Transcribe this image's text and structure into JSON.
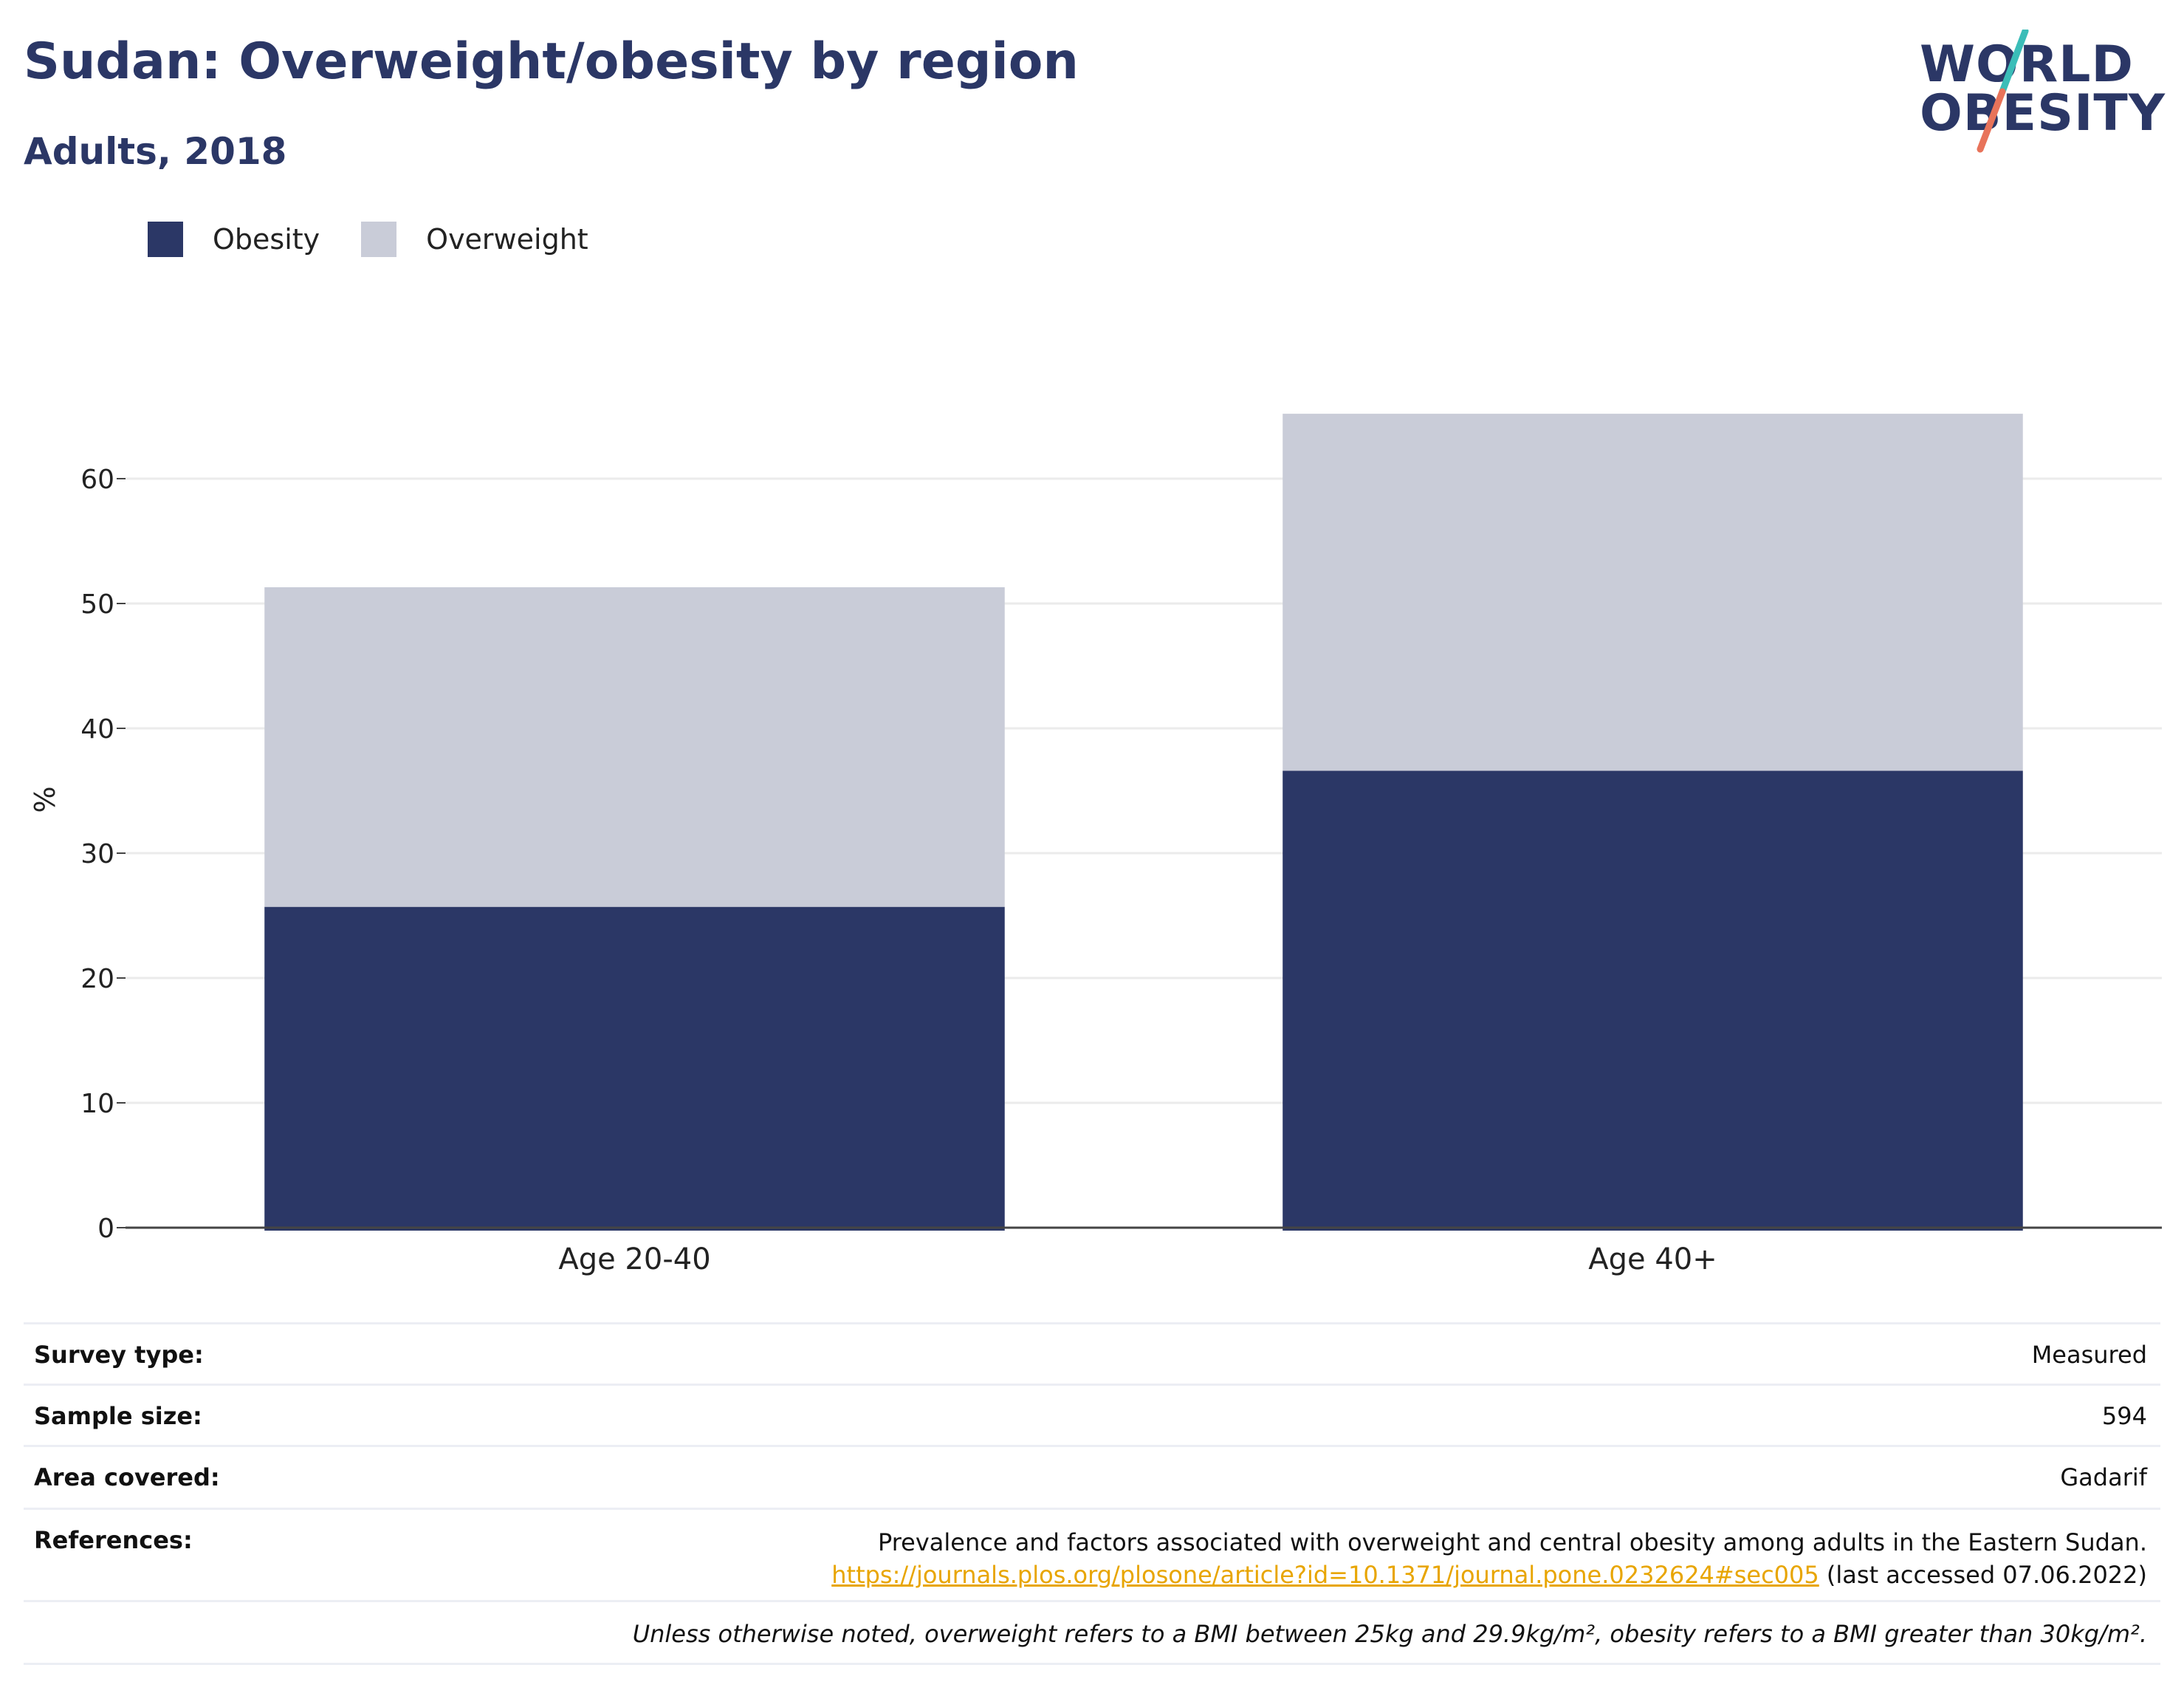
{
  "header": {
    "title": "Sudan: Overweight/obesity by region",
    "subtitle": "Adults, 2018"
  },
  "logo": {
    "line1": "WORLD",
    "line2": "OBESITY"
  },
  "colors": {
    "obesity": "#2b3766",
    "overweight": "#c9ccd8",
    "title": "#2b3766",
    "link": "#e8a500"
  },
  "chart_data": {
    "type": "bar",
    "stacked": true,
    "categories": [
      "Age 20-40",
      "Age 40+"
    ],
    "series": [
      {
        "name": "Obesity",
        "values": [
          25.7,
          36.6
        ]
      },
      {
        "name": "Overweight",
        "values": [
          25.6,
          28.6
        ]
      }
    ],
    "ylabel": "%",
    "ylim": [
      0,
      70
    ],
    "yticks": [
      0,
      10,
      20,
      30,
      40,
      50,
      60
    ],
    "grid": true,
    "legend_position": "top-left"
  },
  "info": {
    "survey_type_label": "Survey type:",
    "survey_type_value": "Measured",
    "sample_size_label": "Sample size:",
    "sample_size_value": "594",
    "area_label": "Area covered:",
    "area_value": "Gadarif",
    "references_label": "References:",
    "reference_title": "Prevalence and factors associated with overweight and central obesity among adults in the Eastern Sudan.",
    "reference_url": "https://journals.plos.org/plosone/article?id=10.1371/journal.pone.0232624#sec005",
    "reference_accessed": "(last accessed 07.06.2022)",
    "note": "Unless otherwise noted, overweight refers to a BMI between 25kg and 29.9kg/m², obesity refers to a BMI greater than 30kg/m²."
  }
}
